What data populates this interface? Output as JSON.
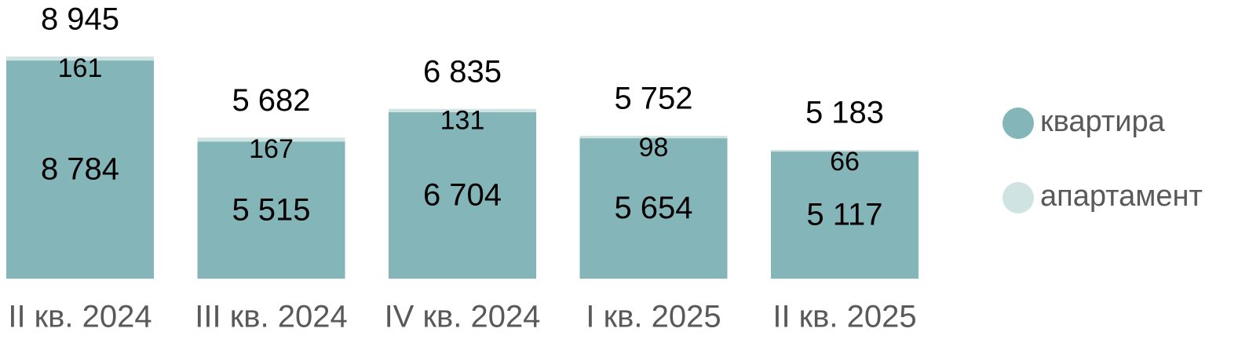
{
  "chart_data": {
    "type": "stacked_bar",
    "categories": [
      "II кв. 2024",
      "III кв. 2024",
      "IV кв. 2024",
      "I кв. 2025",
      "II кв. 2025"
    ],
    "series": [
      {
        "name": "квартира",
        "color": "#84b5b8",
        "values": [
          8784,
          5515,
          6704,
          5654,
          5117
        ],
        "value_labels": [
          "8 784",
          "5 515",
          "6 704",
          "5 654",
          "5 117"
        ]
      },
      {
        "name": "апартамент",
        "color": "#cfe3e3",
        "values": [
          161,
          167,
          131,
          98,
          66
        ]
      }
    ],
    "totals": [
      8945,
      5682,
      6835,
      5752,
      5183
    ],
    "total_labels": [
      "8 945",
      "5 682",
      "6 835",
      "5 752",
      "5 183"
    ],
    "legend": "right"
  }
}
